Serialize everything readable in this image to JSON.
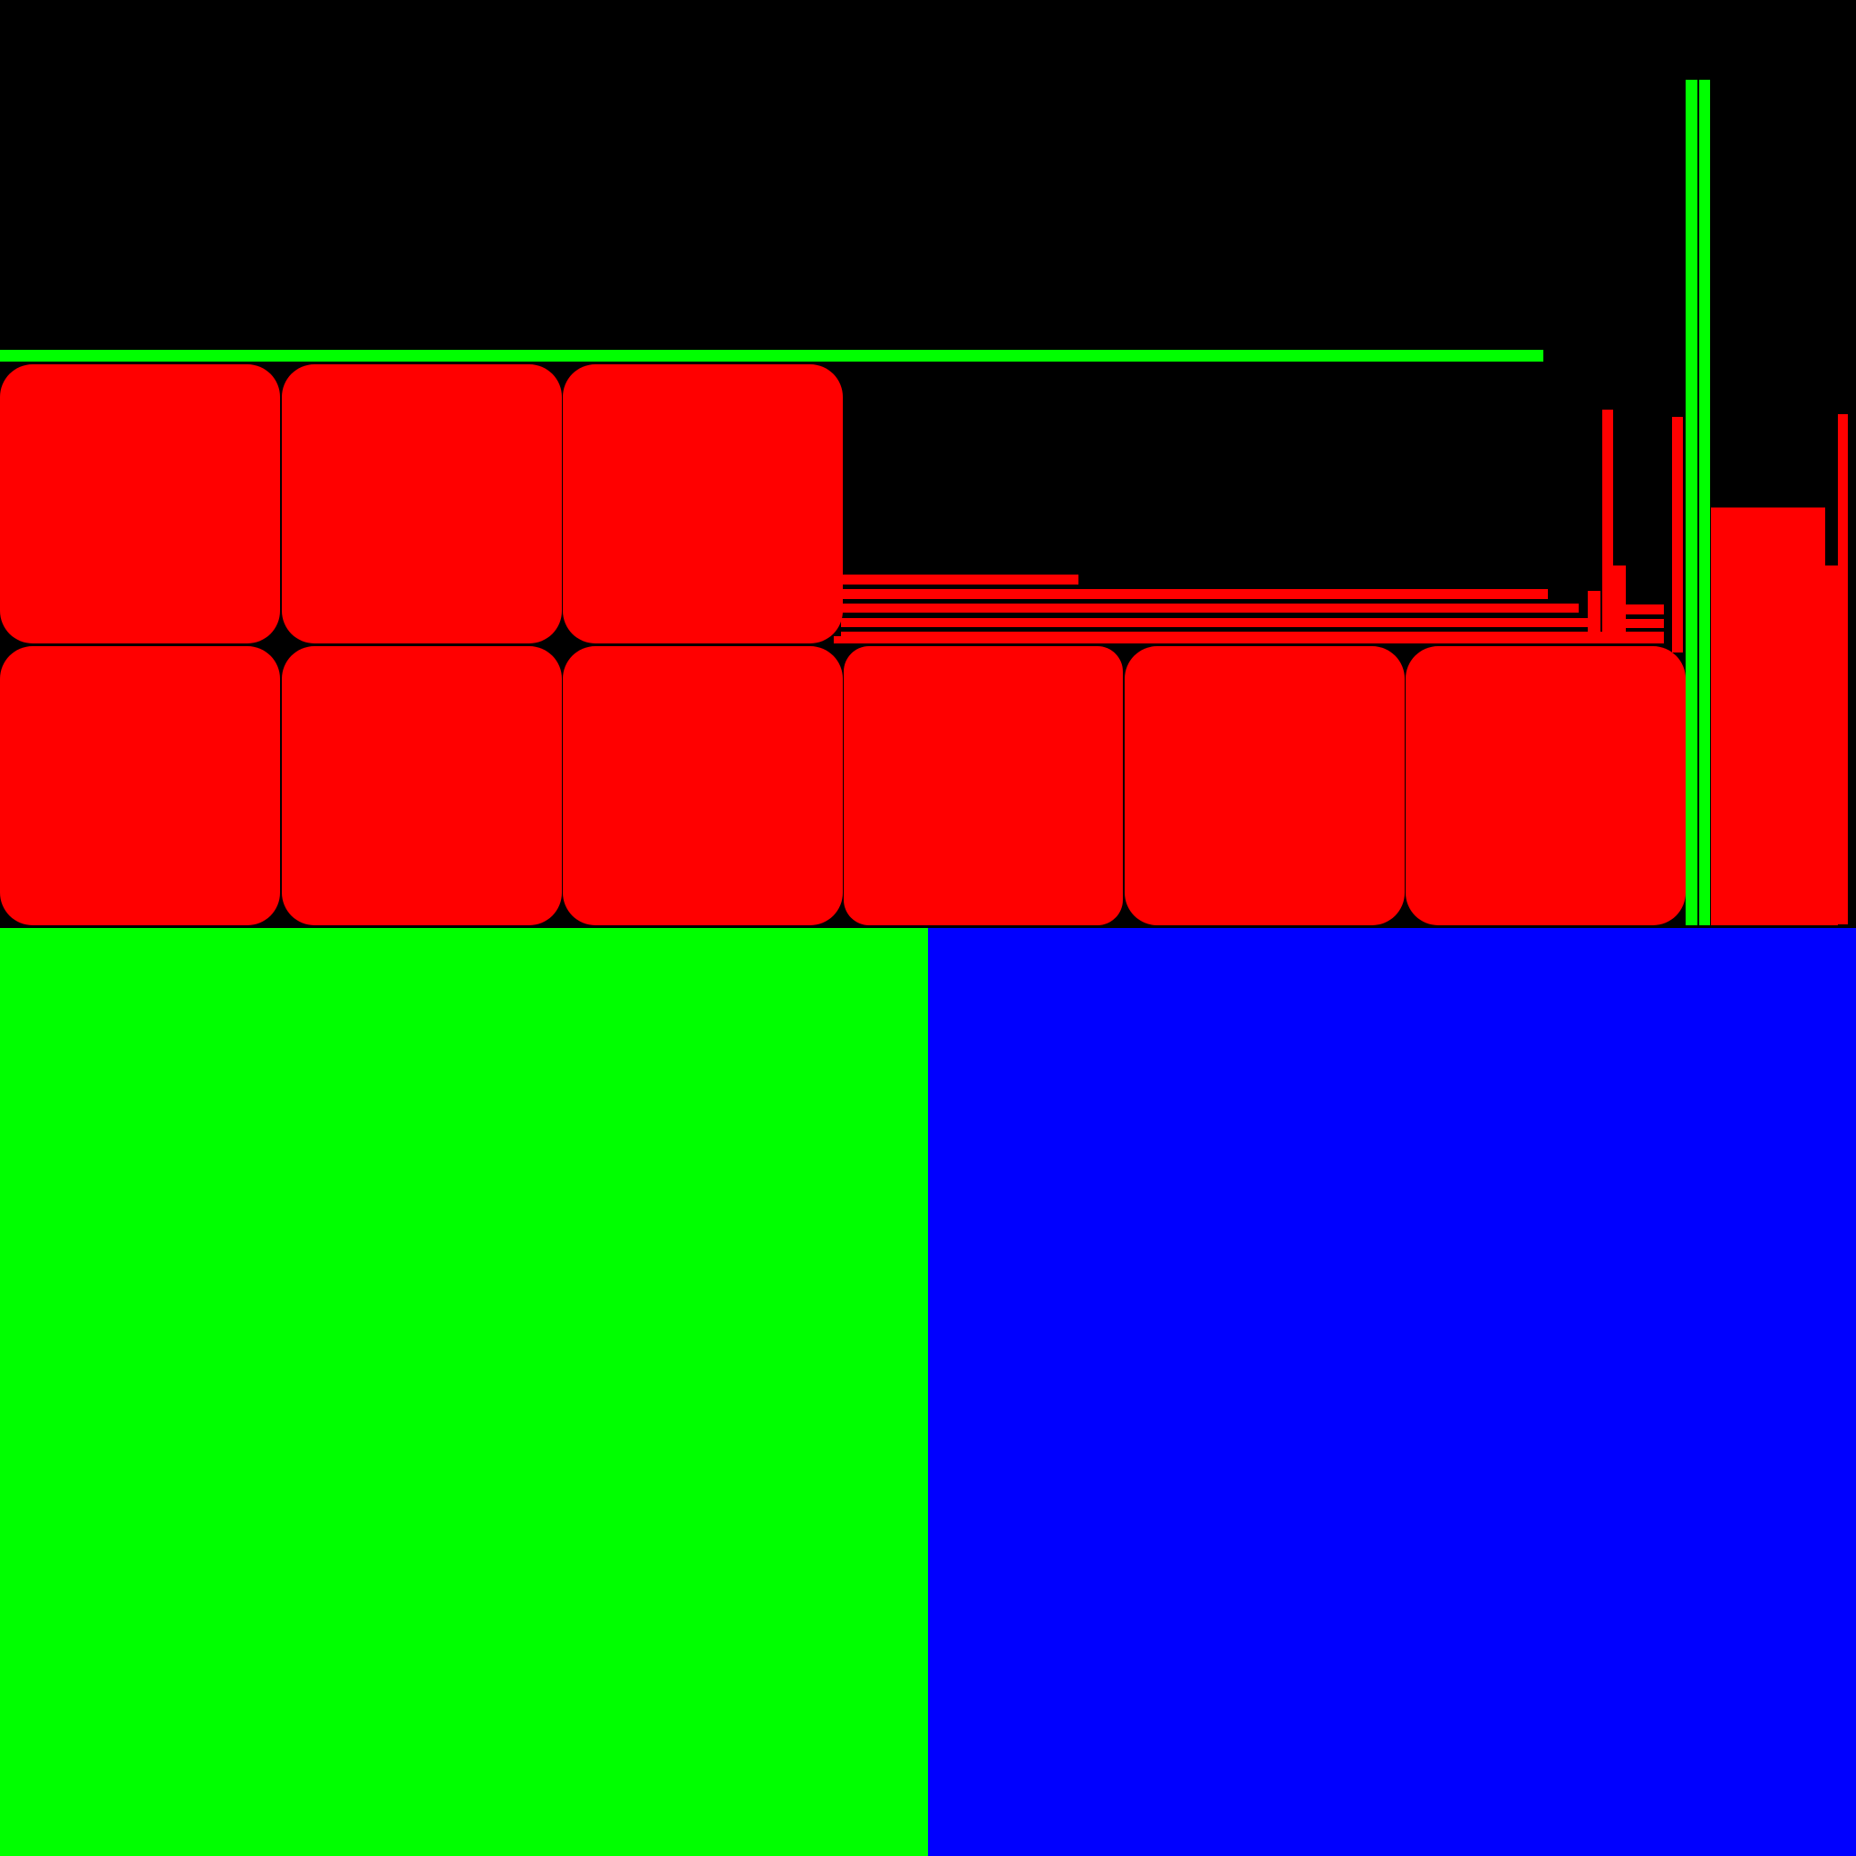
{
  "colors": {
    "background": "#000000",
    "red": "#ff0000",
    "green": "#00ff00",
    "blue": "#0000ff"
  },
  "shapes": [
    {
      "name": "green-rule",
      "color": "green"
    },
    {
      "name": "tile-r1-1",
      "color": "red"
    },
    {
      "name": "tile-r1-2",
      "color": "red"
    },
    {
      "name": "tile-r1-3",
      "color": "red"
    },
    {
      "name": "tile-r2-1",
      "color": "red"
    },
    {
      "name": "tile-r2-2",
      "color": "red"
    },
    {
      "name": "tile-r2-3",
      "color": "red"
    },
    {
      "name": "tile-r2-4",
      "color": "red"
    },
    {
      "name": "tile-r2-5",
      "color": "red"
    },
    {
      "name": "tile-r2-6",
      "color": "red"
    },
    {
      "name": "hbar-1",
      "color": "red"
    },
    {
      "name": "hbar-2",
      "color": "red"
    },
    {
      "name": "hbar-3",
      "color": "red"
    },
    {
      "name": "hbar-4",
      "color": "red"
    },
    {
      "name": "hbar-5",
      "color": "red"
    },
    {
      "name": "hbar-6",
      "color": "red"
    },
    {
      "name": "vbar-1",
      "color": "red"
    },
    {
      "name": "vbar-2",
      "color": "red"
    },
    {
      "name": "vbar-3",
      "color": "red"
    },
    {
      "name": "vbar-4",
      "color": "red"
    },
    {
      "name": "vbar-5",
      "color": "red"
    },
    {
      "name": "tick-1",
      "color": "red"
    },
    {
      "name": "tick-2",
      "color": "red"
    },
    {
      "name": "tick-3",
      "color": "red"
    },
    {
      "name": "right-block",
      "color": "red"
    },
    {
      "name": "right-block-ext",
      "color": "red"
    },
    {
      "name": "green-v-1",
      "color": "green"
    },
    {
      "name": "green-v-2",
      "color": "green"
    },
    {
      "name": "panel-left",
      "color": "green"
    },
    {
      "name": "panel-right",
      "color": "blue"
    }
  ]
}
